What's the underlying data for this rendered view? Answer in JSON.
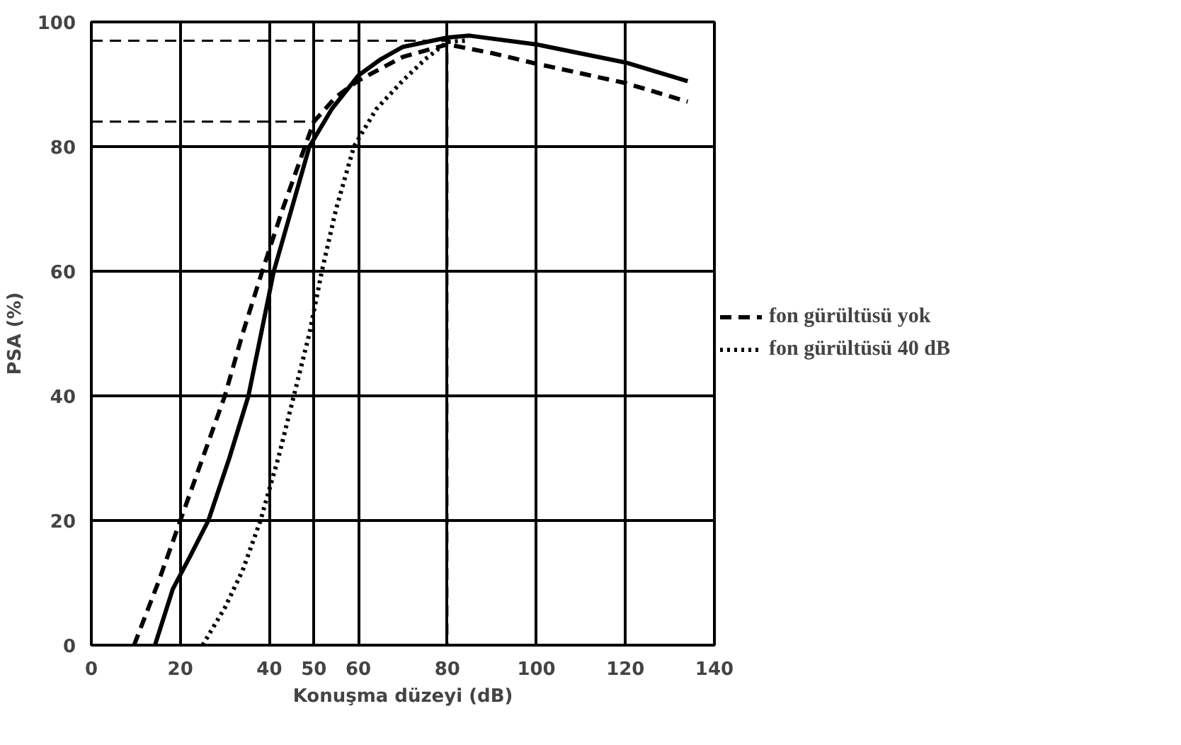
{
  "chart_data": {
    "type": "line",
    "xlabel": "Konuşma düzeyi (dB)",
    "ylabel": "PSA (%)",
    "xlim": [
      0,
      140
    ],
    "ylim": [
      0,
      100
    ],
    "xticks": [
      0,
      20,
      40,
      50,
      60,
      80,
      100,
      120,
      140
    ],
    "yticks": [
      0,
      20,
      40,
      60,
      80,
      100
    ],
    "grid": true,
    "legend": "right",
    "series": [
      {
        "color": "#000000",
        "line_style": "solid",
        "x": [
          14.3,
          18.3,
          22,
          26.3,
          31,
          35.3,
          41,
          45,
          49,
          54,
          60,
          65,
          70,
          80,
          85,
          100,
          120,
          134
        ],
        "values": [
          0,
          9,
          14,
          20,
          30,
          40,
          60,
          70,
          80,
          86,
          91.4,
          94,
          96,
          97.5,
          97.8,
          96.4,
          93.5,
          90.5
        ]
      },
      {
        "name": "fon gürültüsü yok",
        "color": "#000000",
        "line_style": "dashed",
        "x": [
          9.6,
          15,
          20,
          25,
          30,
          34,
          38.4,
          43,
          48,
          50,
          55,
          60,
          70,
          80,
          90,
          100,
          120,
          134
        ],
        "values": [
          0,
          10,
          20,
          30,
          40,
          50,
          60,
          70,
          80,
          84,
          88,
          90.6,
          94.4,
          96.4,
          95,
          93.3,
          90.2,
          87.2
        ]
      },
      {
        "name": "fon gürültüsü 40 dB",
        "color": "#000000",
        "line_style": "dotted",
        "x": [
          25,
          30,
          34,
          38,
          42,
          45.5,
          49,
          51.8,
          55,
          59,
          64,
          70,
          75,
          80,
          84
        ],
        "values": [
          0,
          6,
          12,
          20,
          30,
          40,
          50,
          60,
          70,
          80,
          86,
          90.6,
          94,
          96.8,
          97
        ]
      },
      {
        "color": "#000000",
        "line_style": "dashed",
        "x": [
          0,
          80,
          80,
          null,
          0,
          50,
          50
        ],
        "values": [
          97,
          97,
          0,
          null,
          84,
          84,
          0
        ]
      }
    ]
  }
}
